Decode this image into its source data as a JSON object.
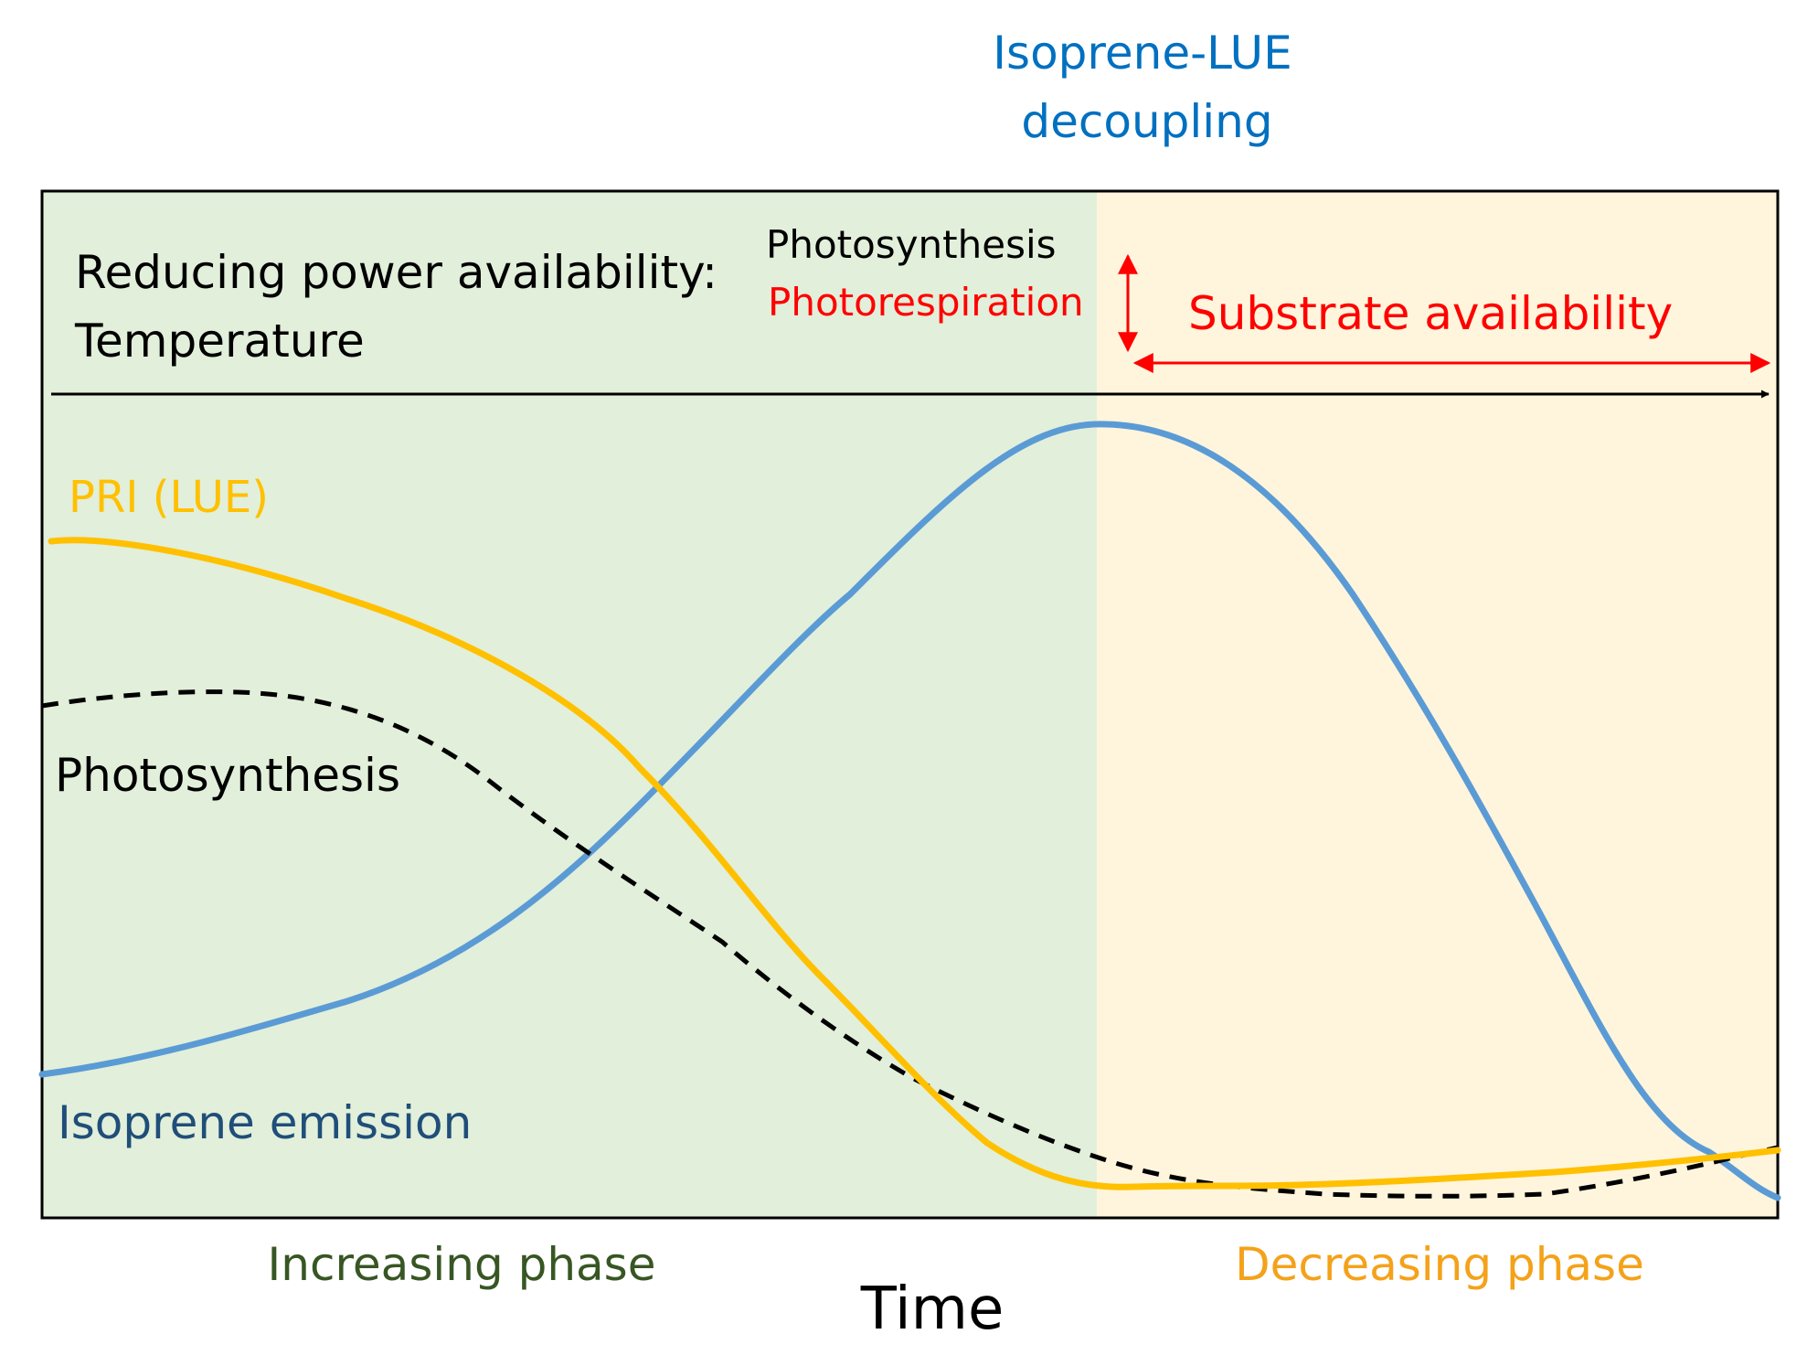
{
  "header": {
    "line1": "Isoprene-LUE",
    "line2": "decoupling"
  },
  "annotations": {
    "reducing_power_line1": "Reducing power availability:",
    "reducing_power_line2": "Temperature",
    "photosynthesis_small": "Photosynthesis",
    "photorespiration": "Photorespiration",
    "substrate_availability": "Substrate availability"
  },
  "phases": {
    "increasing": "Increasing phase",
    "decreasing": "Decreasing phase"
  },
  "axis": {
    "x_label": "Time"
  },
  "curves": {
    "pri": {
      "label": "PRI (LUE)",
      "color": "#FFC000"
    },
    "photosynthesis": {
      "label": "Photosynthesis",
      "color": "#000000",
      "dashed": true
    },
    "isoprene": {
      "label": "Isoprene emission",
      "color": "#5B9BD5"
    }
  },
  "colors": {
    "increasing_bg": "#E2EFDA",
    "decreasing_bg": "#FFF5DC",
    "header_text": "#0070C0",
    "isoprene_label": "#1F4E79",
    "increasing_label": "#375623",
    "decreasing_label": "#F4A21A",
    "red": "#FF0000",
    "black": "#000000"
  }
}
